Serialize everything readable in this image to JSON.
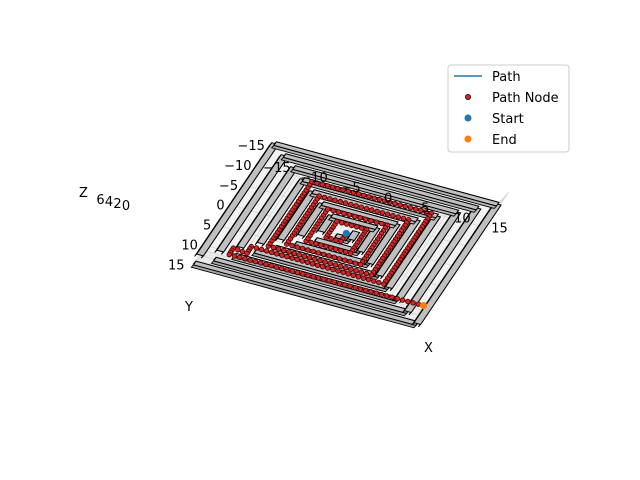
{
  "chart_data": {
    "type": "scatter",
    "projection": "3d",
    "xlabel": "X",
    "ylabel": "Y",
    "zlabel": "Z",
    "xlim": [
      -15,
      15
    ],
    "ylim": [
      -15,
      15
    ],
    "zlim": [
      0,
      6
    ],
    "x_ticks": [
      "−15",
      "−10",
      "−5",
      "0",
      "5",
      "10",
      "15"
    ],
    "y_ticks": [
      "−15",
      "−10",
      "−5",
      "0",
      "5",
      "10",
      "15"
    ],
    "z_ticks": [
      "0",
      "2",
      "4",
      "6"
    ],
    "legend": {
      "placement": "top-right",
      "entries": [
        {
          "label": "Path",
          "kind": "line",
          "color": "#1f77b4"
        },
        {
          "label": "Path Node",
          "kind": "marker",
          "color": "#8b0000"
        },
        {
          "label": "Start",
          "kind": "marker",
          "color": "#1f77b4"
        },
        {
          "label": "End",
          "kind": "marker",
          "color": "#ff7f0e"
        }
      ]
    },
    "colors": {
      "wall_face": "#c0c0c0",
      "wall_edge": "#000000",
      "node": "#d62728",
      "node_edge": "#3a0000",
      "start": "#1f77b4",
      "end": "#ff7f0e"
    },
    "maze_walls": [
      [
        [
          -15,
          15
        ],
        [
          15,
          15
        ]
      ],
      [
        [
          15,
          15
        ],
        [
          15,
          -15
        ]
      ],
      [
        [
          15,
          -15
        ],
        [
          -15,
          -15
        ]
      ],
      [
        [
          -15,
          -15
        ],
        [
          -15,
          13
        ]
      ],
      [
        [
          -13,
          13
        ],
        [
          13,
          13
        ]
      ],
      [
        [
          13,
          13
        ],
        [
          13,
          -13
        ]
      ],
      [
        [
          13,
          -13
        ],
        [
          -13,
          -13
        ]
      ],
      [
        [
          -13,
          -13
        ],
        [
          -13,
          11
        ]
      ],
      [
        [
          -11,
          11
        ],
        [
          11,
          11
        ]
      ],
      [
        [
          11,
          11
        ],
        [
          11,
          -11
        ]
      ],
      [
        [
          11,
          -11
        ],
        [
          -11,
          -11
        ]
      ],
      [
        [
          -11,
          -11
        ],
        [
          -11,
          9
        ]
      ],
      [
        [
          -9,
          9
        ],
        [
          9,
          9
        ]
      ],
      [
        [
          9,
          9
        ],
        [
          9,
          -9
        ]
      ],
      [
        [
          9,
          -9
        ],
        [
          -9,
          -9
        ]
      ],
      [
        [
          -9,
          -9
        ],
        [
          -9,
          7
        ]
      ],
      [
        [
          -7,
          7
        ],
        [
          7,
          7
        ]
      ],
      [
        [
          7,
          7
        ],
        [
          7,
          -7
        ]
      ],
      [
        [
          7,
          -7
        ],
        [
          -7,
          -7
        ]
      ],
      [
        [
          -7,
          -7
        ],
        [
          -7,
          5
        ]
      ],
      [
        [
          -5,
          5
        ],
        [
          5,
          5
        ]
      ],
      [
        [
          5,
          5
        ],
        [
          5,
          -5
        ]
      ],
      [
        [
          5,
          -5
        ],
        [
          -5,
          -5
        ]
      ],
      [
        [
          -5,
          -5
        ],
        [
          -5,
          3
        ]
      ],
      [
        [
          -3,
          3
        ],
        [
          3,
          3
        ]
      ],
      [
        [
          3,
          3
        ],
        [
          3,
          -3
        ]
      ],
      [
        [
          3,
          -3
        ],
        [
          -3,
          -3
        ]
      ],
      [
        [
          -3,
          -3
        ],
        [
          -3,
          1
        ]
      ],
      [
        [
          -1,
          1
        ],
        [
          1,
          1
        ]
      ],
      [
        [
          1,
          1
        ],
        [
          1,
          -1
        ]
      ]
    ],
    "path": {
      "start": [
        0,
        0,
        0
      ],
      "end": [
        14,
        14,
        6
      ],
      "waypoints": [
        [
          0,
          0
        ],
        [
          0,
          2
        ],
        [
          -2,
          2
        ],
        [
          -2,
          -2
        ],
        [
          2,
          -2
        ],
        [
          2,
          4
        ],
        [
          -4,
          4
        ],
        [
          -4,
          -4
        ],
        [
          4,
          -4
        ],
        [
          4,
          6
        ],
        [
          -6,
          6
        ],
        [
          -6,
          -6
        ],
        [
          6,
          -6
        ],
        [
          6,
          8
        ],
        [
          -8,
          8
        ],
        [
          -8,
          -8
        ],
        [
          8,
          -8
        ],
        [
          8,
          10
        ],
        [
          -10,
          10
        ],
        [
          -10,
          12
        ],
        [
          -12,
          12
        ],
        [
          -12,
          14
        ],
        [
          14,
          14
        ]
      ]
    }
  }
}
